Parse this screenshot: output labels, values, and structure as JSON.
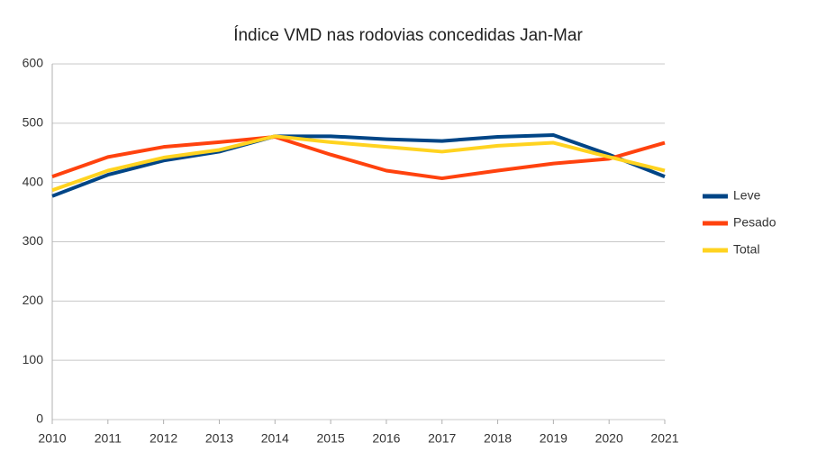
{
  "chart_data": {
    "type": "line",
    "title": "Índice VMD nas rodovias concedidas Jan-Mar",
    "categories": [
      "2010",
      "2011",
      "2012",
      "2013",
      "2014",
      "2015",
      "2016",
      "2017",
      "2018",
      "2019",
      "2020",
      "2021"
    ],
    "series": [
      {
        "name": "Leve",
        "color": "#004586",
        "values": [
          377,
          413,
          437,
          452,
          478,
          478,
          473,
          470,
          477,
          480,
          447,
          410
        ]
      },
      {
        "name": "Pesado",
        "color": "#ff420e",
        "values": [
          410,
          443,
          460,
          468,
          477,
          447,
          420,
          407,
          420,
          432,
          440,
          467
        ]
      },
      {
        "name": "Total",
        "color": "#ffd320",
        "values": [
          387,
          420,
          442,
          455,
          478,
          468,
          460,
          452,
          462,
          467,
          443,
          420
        ]
      }
    ],
    "ylim": [
      0,
      600
    ],
    "yticks": [
      0,
      100,
      200,
      300,
      400,
      500,
      600
    ],
    "grid": true,
    "legend": "right"
  }
}
